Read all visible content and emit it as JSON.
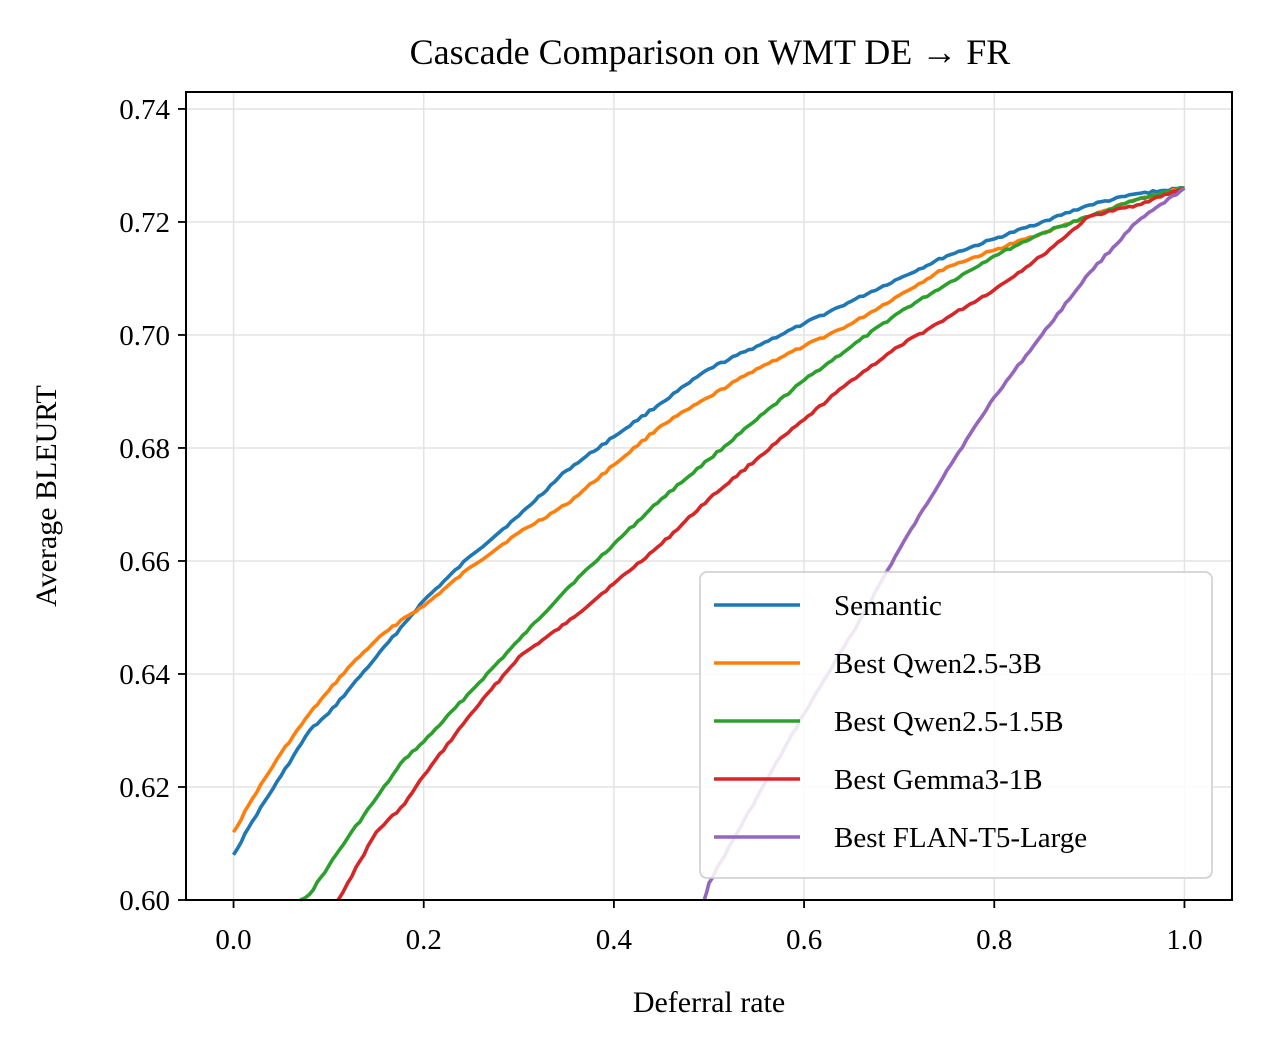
{
  "chart_data": {
    "type": "line",
    "title": "Cascade Comparison on WMT DE → FR",
    "xlabel": "Deferral rate",
    "ylabel": "Average BLEURT",
    "xlim": [
      -0.05,
      1.05
    ],
    "ylim": [
      0.6,
      0.743
    ],
    "xticks": [
      0.0,
      0.2,
      0.4,
      0.6,
      0.8,
      1.0
    ],
    "xtick_labels": [
      "0.0",
      "0.2",
      "0.4",
      "0.6",
      "0.8",
      "1.0"
    ],
    "yticks": [
      0.6,
      0.62,
      0.64,
      0.66,
      0.68,
      0.7,
      0.72,
      0.74
    ],
    "ytick_labels": [
      "0.60",
      "0.62",
      "0.64",
      "0.66",
      "0.68",
      "0.70",
      "0.72",
      "0.74"
    ],
    "grid": true,
    "legend_position": "lower-right",
    "series": [
      {
        "name": "Semantic",
        "color": "#1f77b4",
        "x": [
          0.0,
          0.02,
          0.05,
          0.08,
          0.1,
          0.12,
          0.15,
          0.18,
          0.2,
          0.25,
          0.3,
          0.35,
          0.4,
          0.45,
          0.5,
          0.55,
          0.6,
          0.65,
          0.7,
          0.75,
          0.8,
          0.85,
          0.9,
          0.95,
          1.0
        ],
        "values": [
          0.608,
          0.614,
          0.622,
          0.63,
          0.633,
          0.637,
          0.643,
          0.649,
          0.653,
          0.661,
          0.668,
          0.676,
          0.682,
          0.688,
          0.694,
          0.698,
          0.702,
          0.706,
          0.71,
          0.714,
          0.717,
          0.72,
          0.723,
          0.725,
          0.726
        ]
      },
      {
        "name": "Best Qwen2.5-3B",
        "color": "#ff7f0e",
        "x": [
          0.0,
          0.02,
          0.05,
          0.08,
          0.1,
          0.12,
          0.15,
          0.18,
          0.2,
          0.25,
          0.3,
          0.35,
          0.4,
          0.45,
          0.5,
          0.55,
          0.6,
          0.65,
          0.7,
          0.75,
          0.8,
          0.85,
          0.9,
          0.95,
          1.0
        ],
        "values": [
          0.612,
          0.618,
          0.626,
          0.633,
          0.637,
          0.641,
          0.646,
          0.65,
          0.652,
          0.659,
          0.665,
          0.67,
          0.677,
          0.684,
          0.689,
          0.694,
          0.698,
          0.702,
          0.707,
          0.712,
          0.715,
          0.718,
          0.721,
          0.724,
          0.726
        ]
      },
      {
        "name": "Best Qwen2.5-1.5B",
        "color": "#2ca02c",
        "x": [
          0.07,
          0.08,
          0.1,
          0.12,
          0.15,
          0.18,
          0.2,
          0.25,
          0.3,
          0.35,
          0.4,
          0.45,
          0.5,
          0.55,
          0.6,
          0.65,
          0.7,
          0.75,
          0.8,
          0.85,
          0.9,
          0.95,
          1.0
        ],
        "values": [
          0.6,
          0.601,
          0.606,
          0.611,
          0.618,
          0.625,
          0.628,
          0.637,
          0.646,
          0.655,
          0.663,
          0.671,
          0.678,
          0.685,
          0.692,
          0.698,
          0.704,
          0.709,
          0.714,
          0.718,
          0.721,
          0.724,
          0.726
        ]
      },
      {
        "name": "Best Gemma3-1B",
        "color": "#d62728",
        "x": [
          0.11,
          0.12,
          0.15,
          0.18,
          0.2,
          0.25,
          0.3,
          0.35,
          0.4,
          0.45,
          0.5,
          0.55,
          0.6,
          0.65,
          0.7,
          0.75,
          0.8,
          0.85,
          0.9,
          0.95,
          1.0
        ],
        "values": [
          0.6,
          0.603,
          0.612,
          0.617,
          0.622,
          0.633,
          0.643,
          0.649,
          0.656,
          0.663,
          0.671,
          0.678,
          0.685,
          0.692,
          0.698,
          0.703,
          0.708,
          0.714,
          0.721,
          0.723,
          0.726
        ]
      },
      {
        "name": "Best FLAN-T5-Large",
        "color": "#9467bd",
        "x": [
          0.495,
          0.5,
          0.55,
          0.6,
          0.65,
          0.7,
          0.75,
          0.8,
          0.85,
          0.9,
          0.95,
          1.0
        ],
        "values": [
          0.6,
          0.603,
          0.618,
          0.633,
          0.647,
          0.662,
          0.676,
          0.689,
          0.7,
          0.711,
          0.72,
          0.726
        ]
      }
    ]
  }
}
